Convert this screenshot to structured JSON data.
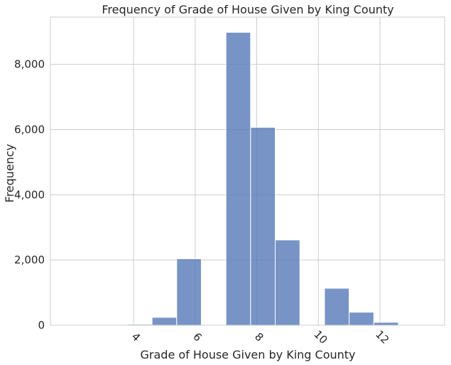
{
  "chart_data": {
    "type": "bar",
    "title": "Frequency of Grade of House Given by King County",
    "xlabel": "Grade of House Given by King County",
    "ylabel": "Frequency",
    "xlim": [
      1.3,
      14.1
    ],
    "ylim": [
      0,
      9450
    ],
    "xticks": [
      4,
      6,
      8,
      10,
      12
    ],
    "yticks": [
      0,
      2000,
      4000,
      6000,
      8000
    ],
    "xtick_rotation": -45,
    "grid": true,
    "bars": [
      {
        "x0": 3.0,
        "x1": 3.8,
        "value": 3
      },
      {
        "x0": 3.8,
        "x1": 4.6,
        "value": 29
      },
      {
        "x0": 4.6,
        "x1": 5.4,
        "value": 242
      },
      {
        "x0": 5.4,
        "x1": 6.2,
        "value": 2038
      },
      {
        "x0": 6.2,
        "x1": 7.0,
        "value": 0
      },
      {
        "x0": 7.0,
        "x1": 7.8,
        "value": 8981
      },
      {
        "x0": 7.8,
        "x1": 8.6,
        "value": 6068
      },
      {
        "x0": 8.6,
        "x1": 9.4,
        "value": 2615
      },
      {
        "x0": 9.4,
        "x1": 10.2,
        "value": 0
      },
      {
        "x0": 10.2,
        "x1": 11.0,
        "value": 1134
      },
      {
        "x0": 11.0,
        "x1": 11.8,
        "value": 399
      },
      {
        "x0": 11.8,
        "x1": 12.6,
        "value": 90
      },
      {
        "x0": 12.6,
        "x1": 13.4,
        "value": 13
      }
    ],
    "color": "#5a7dba",
    "bar_opacity": 0.82
  }
}
